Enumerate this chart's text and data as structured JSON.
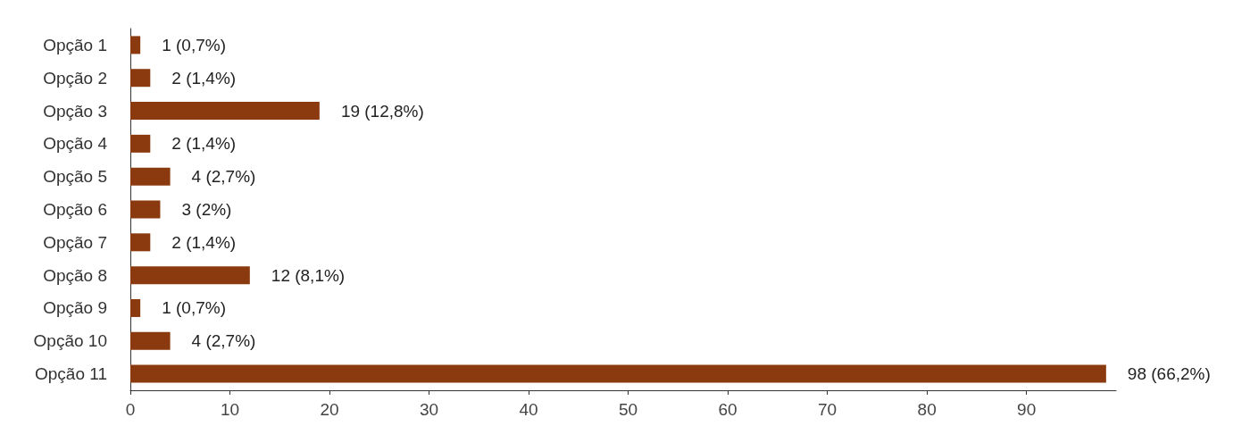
{
  "chart_data": {
    "type": "bar",
    "orientation": "horizontal",
    "categories": [
      "Opção 1",
      "Opção 2",
      "Opção 3",
      "Opção 4",
      "Opção 5",
      "Opção 6",
      "Opção 7",
      "Opção 8",
      "Opção 9",
      "Opção 10",
      "Opção 11"
    ],
    "values": [
      1,
      2,
      19,
      2,
      4,
      3,
      2,
      12,
      1,
      4,
      98
    ],
    "value_labels": [
      "1 (0,7%)",
      "2 (1,4%)",
      "19 (12,8%)",
      "2 (1,4%)",
      "4 (2,7%)",
      "3 (2%)",
      "2 (1,4%)",
      "12 (8,1%)",
      "1 (0,7%)",
      "4 (2,7%)",
      "98 (66,2%)"
    ],
    "color": "#8b3a0f",
    "xlim": [
      0,
      99
    ],
    "xticks": [
      0,
      10,
      20,
      30,
      40,
      50,
      60,
      70,
      80,
      90
    ],
    "grid": false
  }
}
